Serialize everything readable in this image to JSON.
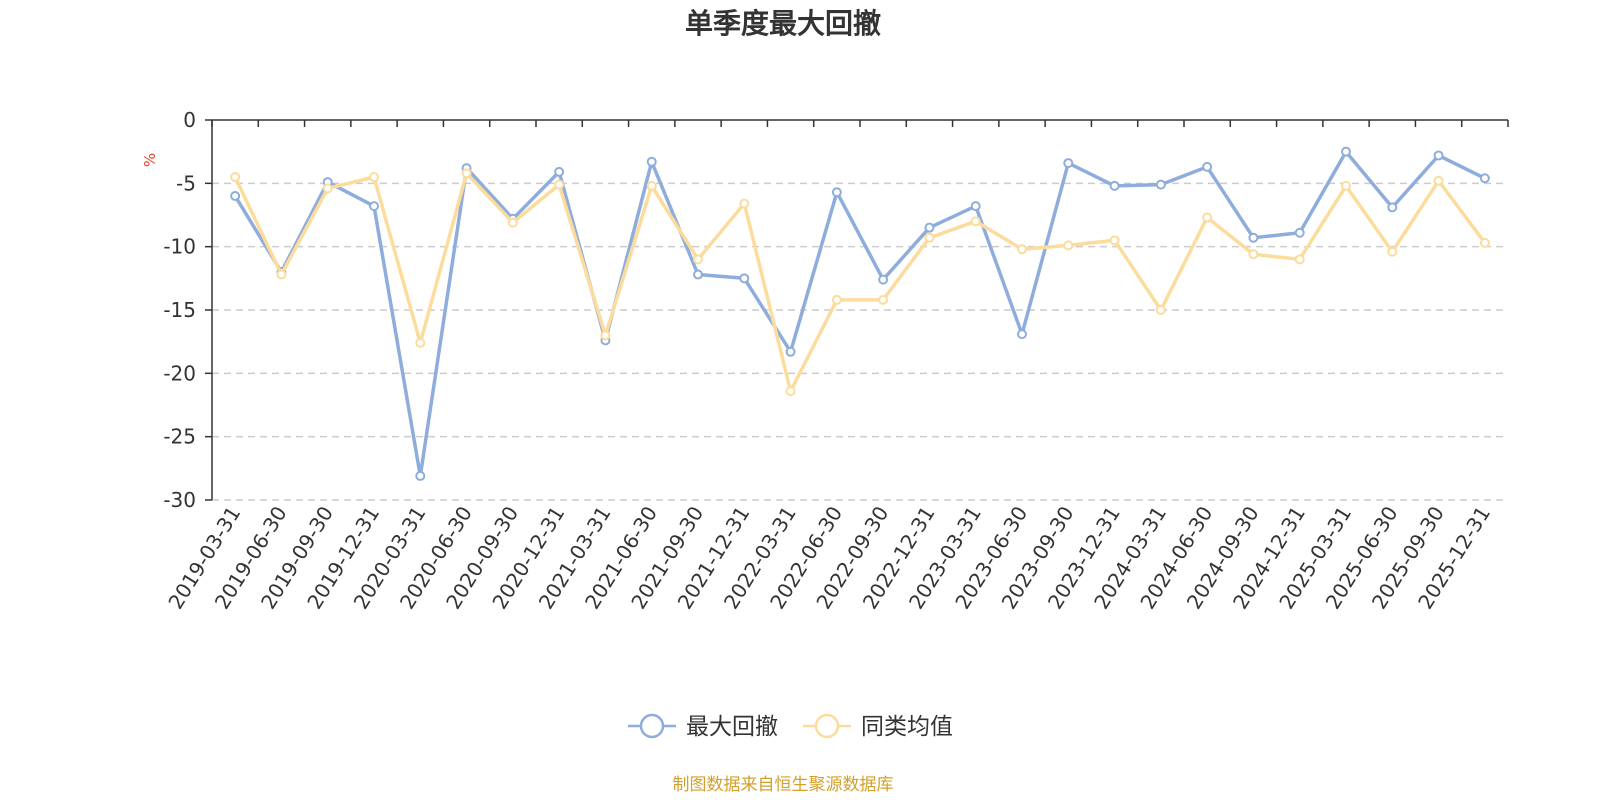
{
  "chart_data": {
    "type": "line",
    "title": "单季度最大回撤",
    "ylabel": "%",
    "ylim": [
      -30,
      0
    ],
    "yticks": [
      0,
      -5,
      -10,
      -15,
      -20,
      -25,
      -30
    ],
    "grid": true,
    "legend_position": "bottom",
    "categories": [
      "2019-03-31",
      "2019-06-30",
      "2019-09-30",
      "2019-12-31",
      "2020-03-31",
      "2020-06-30",
      "2020-09-30",
      "2020-12-31",
      "2021-03-31",
      "2021-06-30",
      "2021-09-30",
      "2021-12-31",
      "2022-03-31",
      "2022-06-30",
      "2022-09-30",
      "2022-12-31",
      "2023-03-31",
      "2023-06-30",
      "2023-09-30",
      "2023-12-31",
      "2024-03-31",
      "2024-06-30",
      "2024-09-30",
      "2024-12-31",
      "2025-03-31",
      "2025-06-30",
      "2025-09-30",
      "2025-12-31"
    ],
    "series": [
      {
        "name": "最大回撤",
        "color": "#8eaddc",
        "values": [
          -6.0,
          -12.0,
          -4.9,
          -6.8,
          -28.1,
          -3.8,
          -7.8,
          -4.1,
          -17.4,
          -3.3,
          -12.2,
          -12.5,
          -18.3,
          -5.7,
          -12.6,
          -8.5,
          -6.8,
          -16.9,
          -3.4,
          -5.2,
          -5.1,
          -3.7,
          -9.3,
          -8.9,
          -2.5,
          -6.9,
          -2.8,
          -4.6
        ]
      },
      {
        "name": "同类均值",
        "color": "#fcdc9c",
        "values": [
          -4.5,
          -12.2,
          -5.4,
          -4.5,
          -17.6,
          -4.2,
          -8.1,
          -5.1,
          -17.0,
          -5.2,
          -11.0,
          -6.6,
          -21.4,
          -14.2,
          -14.2,
          -9.3,
          -8.0,
          -10.2,
          -9.9,
          -9.5,
          -15.0,
          -7.7,
          -10.6,
          -11.0,
          -5.2,
          -10.4,
          -4.8,
          -9.7
        ]
      }
    ]
  },
  "source_text": "制图数据来自恒生聚源数据库",
  "colors": {
    "axis": "#333333",
    "grid": "#cccccc",
    "unit_label": "#e8402f",
    "source_text": "#d4a02a"
  }
}
